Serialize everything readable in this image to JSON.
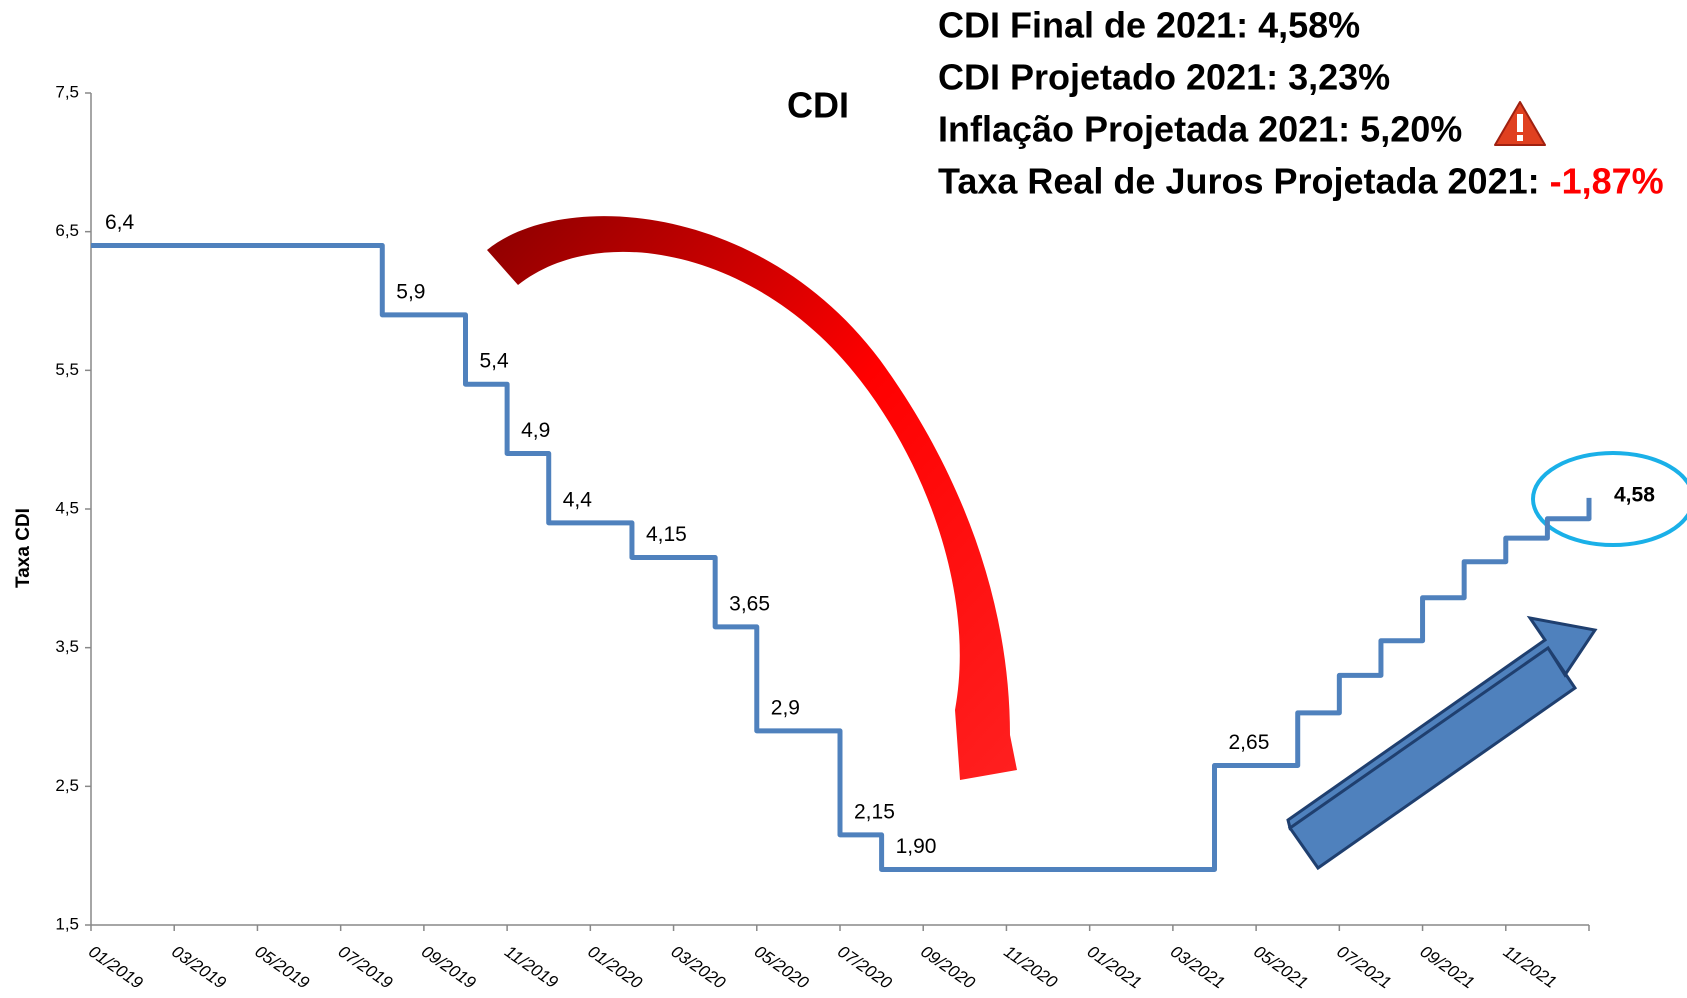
{
  "chart_data": {
    "type": "line",
    "title": "CDI",
    "y_label": "Taxa CDI",
    "annotations": [
      "CDI Final de 2021: 4,58%",
      "CDI Projetado 2021: 3,23%",
      "Inflação Projetada 2021: 5,20%",
      "Taxa Real de Juros Projetada 2021:"
    ],
    "annotation_highlight": {
      "text": "-1,87%",
      "color": "#ff0000"
    },
    "categories": [
      "01/2019",
      null,
      "03/2019",
      null,
      "05/2019",
      null,
      "07/2019",
      null,
      "09/2019",
      null,
      "11/2019",
      null,
      "01/2020",
      null,
      "03/2020",
      null,
      "05/2020",
      null,
      "07/2020",
      null,
      "09/2020",
      null,
      "11/2020",
      null,
      "01/2021",
      null,
      "03/2021",
      null,
      "05/2021",
      null,
      "07/2021",
      null,
      "09/2021",
      null,
      "11/2021",
      null,
      null
    ],
    "series": [
      {
        "name": "CDI",
        "color": "#4f81bd",
        "values": [
          6.4,
          6.4,
          6.4,
          6.4,
          6.4,
          6.4,
          6.4,
          5.9,
          5.9,
          5.4,
          4.9,
          4.4,
          4.4,
          4.15,
          4.15,
          3.65,
          2.9,
          2.9,
          2.15,
          1.9,
          1.9,
          1.9,
          1.9,
          1.9,
          1.9,
          1.9,
          1.9,
          2.65,
          2.65,
          3.03,
          3.3,
          3.55,
          3.86,
          4.12,
          4.29,
          4.43,
          4.58
        ],
        "value_labels": [
          "6,4",
          null,
          null,
          null,
          null,
          null,
          null,
          "5,9",
          null,
          "5,4",
          "4,9",
          "4,4",
          null,
          "4,15",
          null,
          "3,65",
          "2,9",
          null,
          "2,15",
          "1,90",
          null,
          null,
          null,
          null,
          null,
          null,
          null,
          "2,65",
          null,
          null,
          null,
          null,
          null,
          null,
          null,
          null,
          "4,58"
        ]
      }
    ],
    "ylim": [
      1.5,
      7.5
    ],
    "yticks": [
      {
        "value": 1.5,
        "label": "1,5"
      },
      {
        "value": 2.5,
        "label": "2,5"
      },
      {
        "value": 3.5,
        "label": "3,5"
      },
      {
        "value": 4.5,
        "label": "4,5"
      },
      {
        "value": 5.5,
        "label": "5,5"
      },
      {
        "value": 6.5,
        "label": "6,5"
      },
      {
        "value": 7.5,
        "label": "7,5"
      }
    ]
  }
}
